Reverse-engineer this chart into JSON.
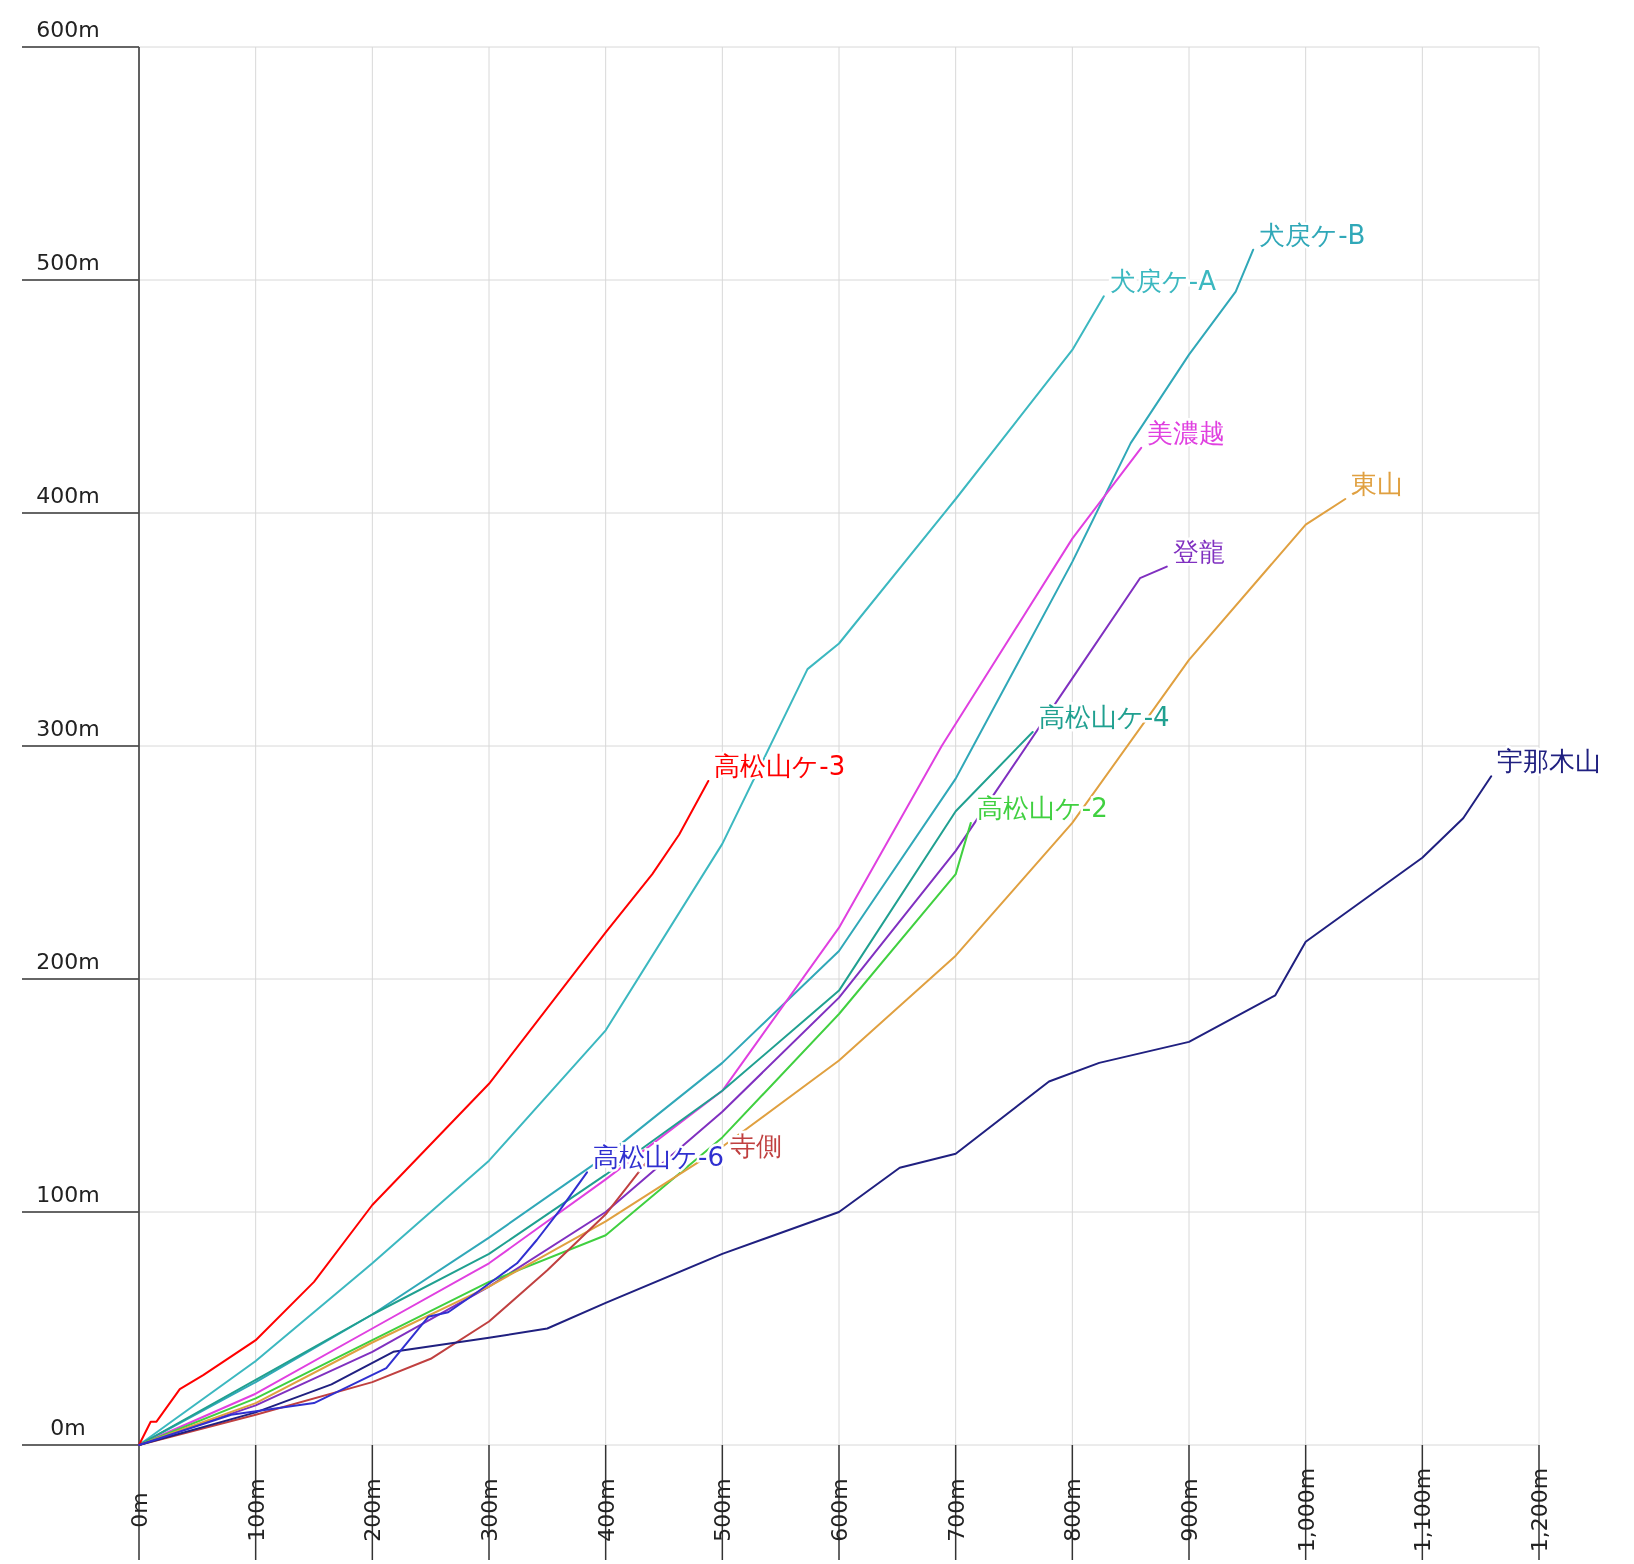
{
  "chart_data": {
    "type": "line",
    "xlim": [
      0,
      1200
    ],
    "ylim": [
      0,
      600
    ],
    "xticks": [
      {
        "value": 0,
        "label": "0m"
      },
      {
        "value": 100,
        "label": "100m"
      },
      {
        "value": 200,
        "label": "200m"
      },
      {
        "value": 300,
        "label": "300m"
      },
      {
        "value": 400,
        "label": "400m"
      },
      {
        "value": 500,
        "label": "500m"
      },
      {
        "value": 600,
        "label": "600m"
      },
      {
        "value": 700,
        "label": "700m"
      },
      {
        "value": 800,
        "label": "800m"
      },
      {
        "value": 900,
        "label": "900m"
      },
      {
        "value": 1000,
        "label": "1,000m"
      },
      {
        "value": 1100,
        "label": "1,100m"
      },
      {
        "value": 1200,
        "label": "1,200m"
      }
    ],
    "yticks": [
      {
        "value": 0,
        "label": "0m"
      },
      {
        "value": 100,
        "label": "100m"
      },
      {
        "value": 200,
        "label": "200m"
      },
      {
        "value": 300,
        "label": "300m"
      },
      {
        "value": 400,
        "label": "400m"
      },
      {
        "value": 500,
        "label": "500m"
      },
      {
        "value": 600,
        "label": "600m"
      }
    ],
    "grid": true,
    "marker": "none",
    "line_style": "solid",
    "series": [
      {
        "name": "犬戻ケ-A",
        "color": "#3cb8c0",
        "x": [
          0,
          100,
          200,
          300,
          400,
          500,
          573,
          600,
          700,
          800,
          827
        ],
        "values": [
          0,
          36,
          78,
          122,
          178,
          258,
          333,
          344,
          406,
          470,
          493
        ]
      },
      {
        "name": "犬戻ケ-B",
        "color": "#30a8b8",
        "x": [
          0,
          100,
          200,
          300,
          400,
          500,
          600,
          700,
          800,
          850,
          900,
          940,
          955
        ],
        "values": [
          0,
          27,
          56,
          89,
          124,
          164,
          212,
          286,
          379,
          430,
          468,
          495,
          513
        ]
      },
      {
        "name": "美濃越",
        "color": "#e040e0",
        "x": [
          0,
          100,
          200,
          300,
          400,
          500,
          600,
          688,
          800,
          859
        ],
        "values": [
          0,
          22,
          50,
          78,
          114,
          152,
          222,
          300,
          389,
          428
        ]
      },
      {
        "name": "登龍",
        "color": "#8030c0",
        "x": [
          0,
          100,
          200,
          300,
          400,
          500,
          600,
          700,
          800,
          858,
          881
        ],
        "values": [
          0,
          17,
          40,
          68,
          100,
          143,
          192,
          255,
          329,
          372,
          377
        ]
      },
      {
        "name": "高松山ケ-4",
        "color": "#20a090",
        "x": [
          0,
          100,
          200,
          300,
          400,
          500,
          600,
          700,
          766
        ],
        "values": [
          0,
          28,
          56,
          82,
          116,
          152,
          195,
          272,
          306
        ]
      },
      {
        "name": "高松山ケ-2",
        "color": "#40d040",
        "x": [
          0,
          100,
          200,
          300,
          400,
          500,
          600,
          700,
          713
        ],
        "values": [
          0,
          20,
          45,
          70,
          90,
          132,
          185,
          245,
          267
        ]
      },
      {
        "name": "東山",
        "color": "#e0a040",
        "x": [
          0,
          100,
          200,
          300,
          400,
          500,
          600,
          700,
          800,
          900,
          1000,
          1034
        ],
        "values": [
          0,
          18,
          44,
          68,
          96,
          128,
          165,
          210,
          267,
          337,
          395,
          406
        ]
      },
      {
        "name": "寺側",
        "color": "#c04040",
        "x": [
          0,
          100,
          200,
          250,
          300,
          350,
          400,
          436
        ],
        "values": [
          0,
          13,
          27,
          37,
          53,
          75,
          99,
          122
        ]
      },
      {
        "name": "宇那木山",
        "color": "#202080",
        "x": [
          0,
          100,
          165,
          218,
          300,
          350,
          400,
          500,
          600,
          652,
          700,
          780,
          823,
          900,
          974,
          1000,
          1100,
          1135,
          1159
        ],
        "values": [
          0,
          14,
          26,
          40,
          46,
          50,
          61,
          82,
          100,
          119,
          125,
          156,
          164,
          173,
          193,
          216,
          252,
          269,
          287
        ]
      },
      {
        "name": "高松山ケ-3",
        "color": "#ff0000",
        "x": [
          0,
          10,
          15,
          35,
          55,
          100,
          150,
          200,
          300,
          400,
          440,
          463,
          488
        ],
        "values": [
          0,
          10,
          10,
          24,
          30,
          45,
          70,
          103,
          155,
          220,
          245,
          262,
          285
        ]
      },
      {
        "name": "高松山ケ-6",
        "color": "#3030d0",
        "x": [
          0,
          79,
          150,
          212,
          248,
          265,
          291,
          324,
          341,
          361,
          384
        ],
        "values": [
          0,
          13,
          18,
          33,
          55,
          57,
          66,
          78,
          88,
          101,
          117
        ]
      }
    ]
  }
}
